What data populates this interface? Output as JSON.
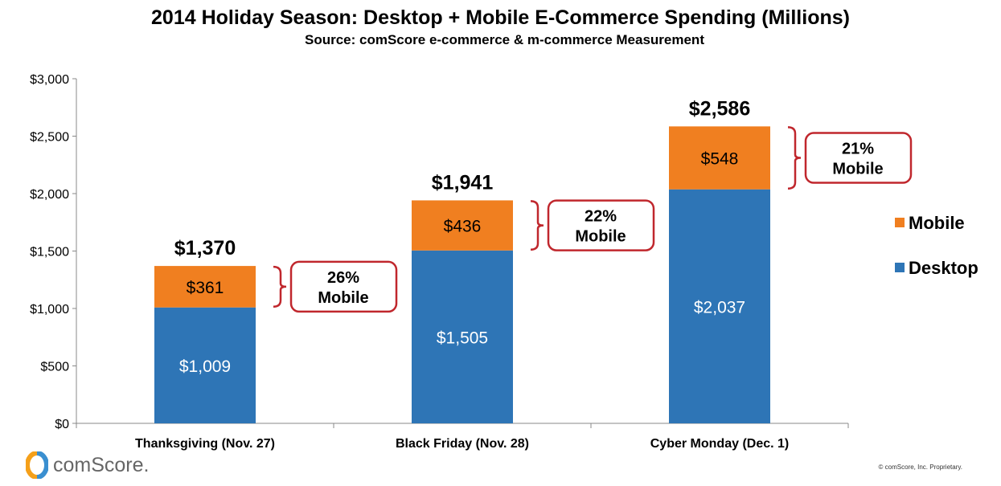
{
  "chart_data": {
    "type": "bar",
    "stacked": true,
    "title": "2014 Holiday Season: Desktop + Mobile E-Commerce Spending (Millions)",
    "subtitle": "Source: comScore e-commerce & m-commerce Measurement",
    "categories": [
      "Thanksgiving (Nov. 27)",
      "Black Friday (Nov. 28)",
      "Cyber Monday (Dec. 1)"
    ],
    "series": [
      {
        "name": "Desktop",
        "values": [
          1009,
          1505,
          2037
        ],
        "labels": [
          "$1,009",
          "$1,505",
          "$2,037"
        ],
        "color": "#2e75b6"
      },
      {
        "name": "Mobile",
        "values": [
          361,
          436,
          548
        ],
        "labels": [
          "$361",
          "$436",
          "$548"
        ],
        "color": "#f07f20"
      }
    ],
    "totals": [
      "$1,370",
      "$1,941",
      "$2,586"
    ],
    "callouts": [
      {
        "pct": "26%",
        "label": "Mobile"
      },
      {
        "pct": "22%",
        "label": "Mobile"
      },
      {
        "pct": "21%",
        "label": "Mobile"
      }
    ],
    "callout_color": "#c0272d",
    "ylim": [
      0,
      3000
    ],
    "yticks": [
      0,
      500,
      1000,
      1500,
      2000,
      2500,
      3000
    ],
    "ytick_labels": [
      "$0",
      "$500",
      "$1,000",
      "$1,500",
      "$2,000",
      "$2,500",
      "$3,000"
    ],
    "grid": false,
    "legend_position": "right",
    "legend": [
      "Mobile",
      "Desktop"
    ]
  },
  "footer": {
    "logo_text": "comScore.",
    "copyright": "© comScore, Inc. Proprietary."
  }
}
